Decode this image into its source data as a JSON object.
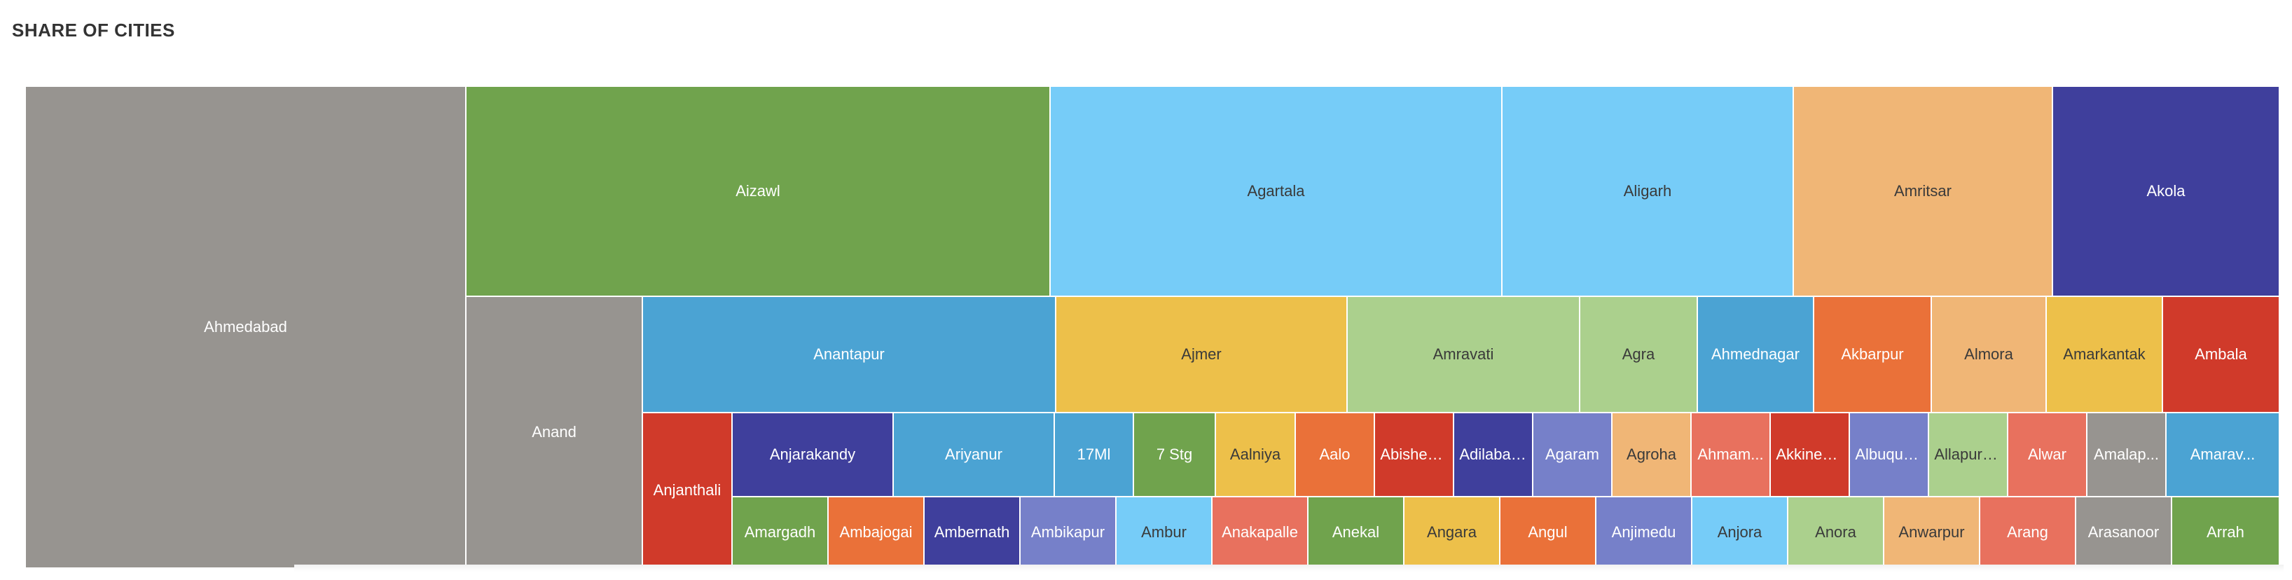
{
  "title": "SHARE OF CITIES",
  "chart_data": {
    "type": "treemap",
    "title": "SHARE OF CITIES",
    "items": [
      {
        "name": "Ahmedabad",
        "value": 10500,
        "color": "#979490",
        "label": "Ahmedabad"
      },
      {
        "name": "Aizawl",
        "value": 3000,
        "color": "#70a34d",
        "label": "Aizawl"
      },
      {
        "name": "Agartala",
        "value": 2310,
        "color": "#76ccf8",
        "label": "Agartala"
      },
      {
        "name": "Aligarh",
        "value": 1480,
        "color": "#76ccf8",
        "label": "Aligarh"
      },
      {
        "name": "Amritsar",
        "value": 1320,
        "color": "#f0b676",
        "label": "Amritsar"
      },
      {
        "name": "Akola",
        "value": 1160,
        "color": "#3f3f9c",
        "label": "Akola"
      },
      {
        "name": "Anand",
        "value": 1940,
        "color": "#979490",
        "label": "Anand"
      },
      {
        "name": "Anantapur",
        "value": 1110,
        "color": "#4ba3d3",
        "label": "Anantapur"
      },
      {
        "name": "Ajmer",
        "value": 790,
        "color": "#edc04a",
        "label": "Ajmer"
      },
      {
        "name": "Amravati",
        "value": 630,
        "color": "#abd08d",
        "label": "Amravati"
      },
      {
        "name": "Agra",
        "value": 320,
        "color": "#abd08d",
        "label": "Agra"
      },
      {
        "name": "Ahmednagar",
        "value": 300,
        "color": "#4ba3d3",
        "label": "Ahmednagar"
      },
      {
        "name": "Akbarpur",
        "value": 320,
        "color": "#ea7139",
        "label": "Akbarpur"
      },
      {
        "name": "Almora",
        "value": 310,
        "color": "#f0b676",
        "label": "Almora"
      },
      {
        "name": "Amarkantak",
        "value": 310,
        "color": "#edc04a",
        "label": "Amarkantak"
      },
      {
        "name": "Ambala",
        "value": 310,
        "color": "#d03a2a",
        "label": "Ambala"
      },
      {
        "name": "Anjanthali",
        "value": 300,
        "color": "#d03a2a",
        "label": "Anjanthali"
      },
      {
        "name": "Anjarakandy",
        "value": 220,
        "color": "#3f3f9c",
        "label": "Anjarakandy"
      },
      {
        "name": "Ariyanur",
        "value": 220,
        "color": "#4ba3d3",
        "label": "Ariyanur"
      },
      {
        "name": "17Ml",
        "value": 100,
        "color": "#4ba3d3",
        "label": "17Ml"
      },
      {
        "name": "7 Stg",
        "value": 110,
        "color": "#70a34d",
        "label": "7 Stg"
      },
      {
        "name": "Aalniya",
        "value": 110,
        "color": "#edc04a",
        "label": "Aalniya"
      },
      {
        "name": "Aalo",
        "value": 110,
        "color": "#ea7139",
        "label": "Aalo"
      },
      {
        "name": "Abishek...",
        "value": 110,
        "color": "#d03a2a",
        "label": "Abishek..."
      },
      {
        "name": "Adilabad...",
        "value": 110,
        "color": "#3f3f9c",
        "label": "Adilabad..."
      },
      {
        "name": "Agaram",
        "value": 110,
        "color": "#7680c9",
        "label": "Agaram"
      },
      {
        "name": "Agroha",
        "value": 110,
        "color": "#f0b676",
        "label": "Agroha"
      },
      {
        "name": "Ahmam...",
        "value": 110,
        "color": "#e8715e",
        "label": "Ahmam..."
      },
      {
        "name": "Akkinep...",
        "value": 110,
        "color": "#d03a2a",
        "label": "Akkinep..."
      },
      {
        "name": "Albuquer...",
        "value": 110,
        "color": "#7680c9",
        "label": "Albuquer..."
      },
      {
        "name": "Allapuram",
        "value": 110,
        "color": "#abd08d",
        "label": "Allapuram"
      },
      {
        "name": "Alwar",
        "value": 110,
        "color": "#e8715e",
        "label": "Alwar"
      },
      {
        "name": "Amalap...",
        "value": 110,
        "color": "#979490",
        "label": "Amalap..."
      },
      {
        "name": "Amarav...",
        "value": 110,
        "color": "#4ba3d3",
        "label": "Amarav..."
      },
      {
        "name": "Amargadh",
        "value": 100,
        "color": "#70a34d",
        "label": "Amargadh"
      },
      {
        "name": "Ambajogai",
        "value": 100,
        "color": "#ea7139",
        "label": "Ambajogai"
      },
      {
        "name": "Ambernath",
        "value": 100,
        "color": "#3f3f9c",
        "label": "Ambernath"
      },
      {
        "name": "Ambikapur",
        "value": 100,
        "color": "#7680c9",
        "label": "Ambikapur"
      },
      {
        "name": "Ambur",
        "value": 100,
        "color": "#76ccf8",
        "label": "Ambur"
      },
      {
        "name": "Anakapalle",
        "value": 100,
        "color": "#e8715e",
        "label": "Anakapalle"
      },
      {
        "name": "Anekal",
        "value": 100,
        "color": "#70a34d",
        "label": "Anekal"
      },
      {
        "name": "Angara",
        "value": 100,
        "color": "#edc04a",
        "label": "Angara"
      },
      {
        "name": "Angul",
        "value": 100,
        "color": "#ea7139",
        "label": "Angul"
      },
      {
        "name": "Anjimedu",
        "value": 100,
        "color": "#7680c9",
        "label": "Anjimedu"
      },
      {
        "name": "Anjora",
        "value": 100,
        "color": "#76ccf8",
        "label": "Anjora"
      },
      {
        "name": "Anora",
        "value": 100,
        "color": "#abd08d",
        "label": "Anora"
      },
      {
        "name": "Anwarpur",
        "value": 100,
        "color": "#f0b676",
        "label": "Anwarpur"
      },
      {
        "name": "Arang",
        "value": 100,
        "color": "#e8715e",
        "label": "Arang"
      },
      {
        "name": "Arasanoor",
        "value": 100,
        "color": "#979490",
        "label": "Arasanoor"
      },
      {
        "name": "Arrah",
        "value": 100,
        "color": "#70a34d",
        "label": "Arrah"
      }
    ]
  }
}
